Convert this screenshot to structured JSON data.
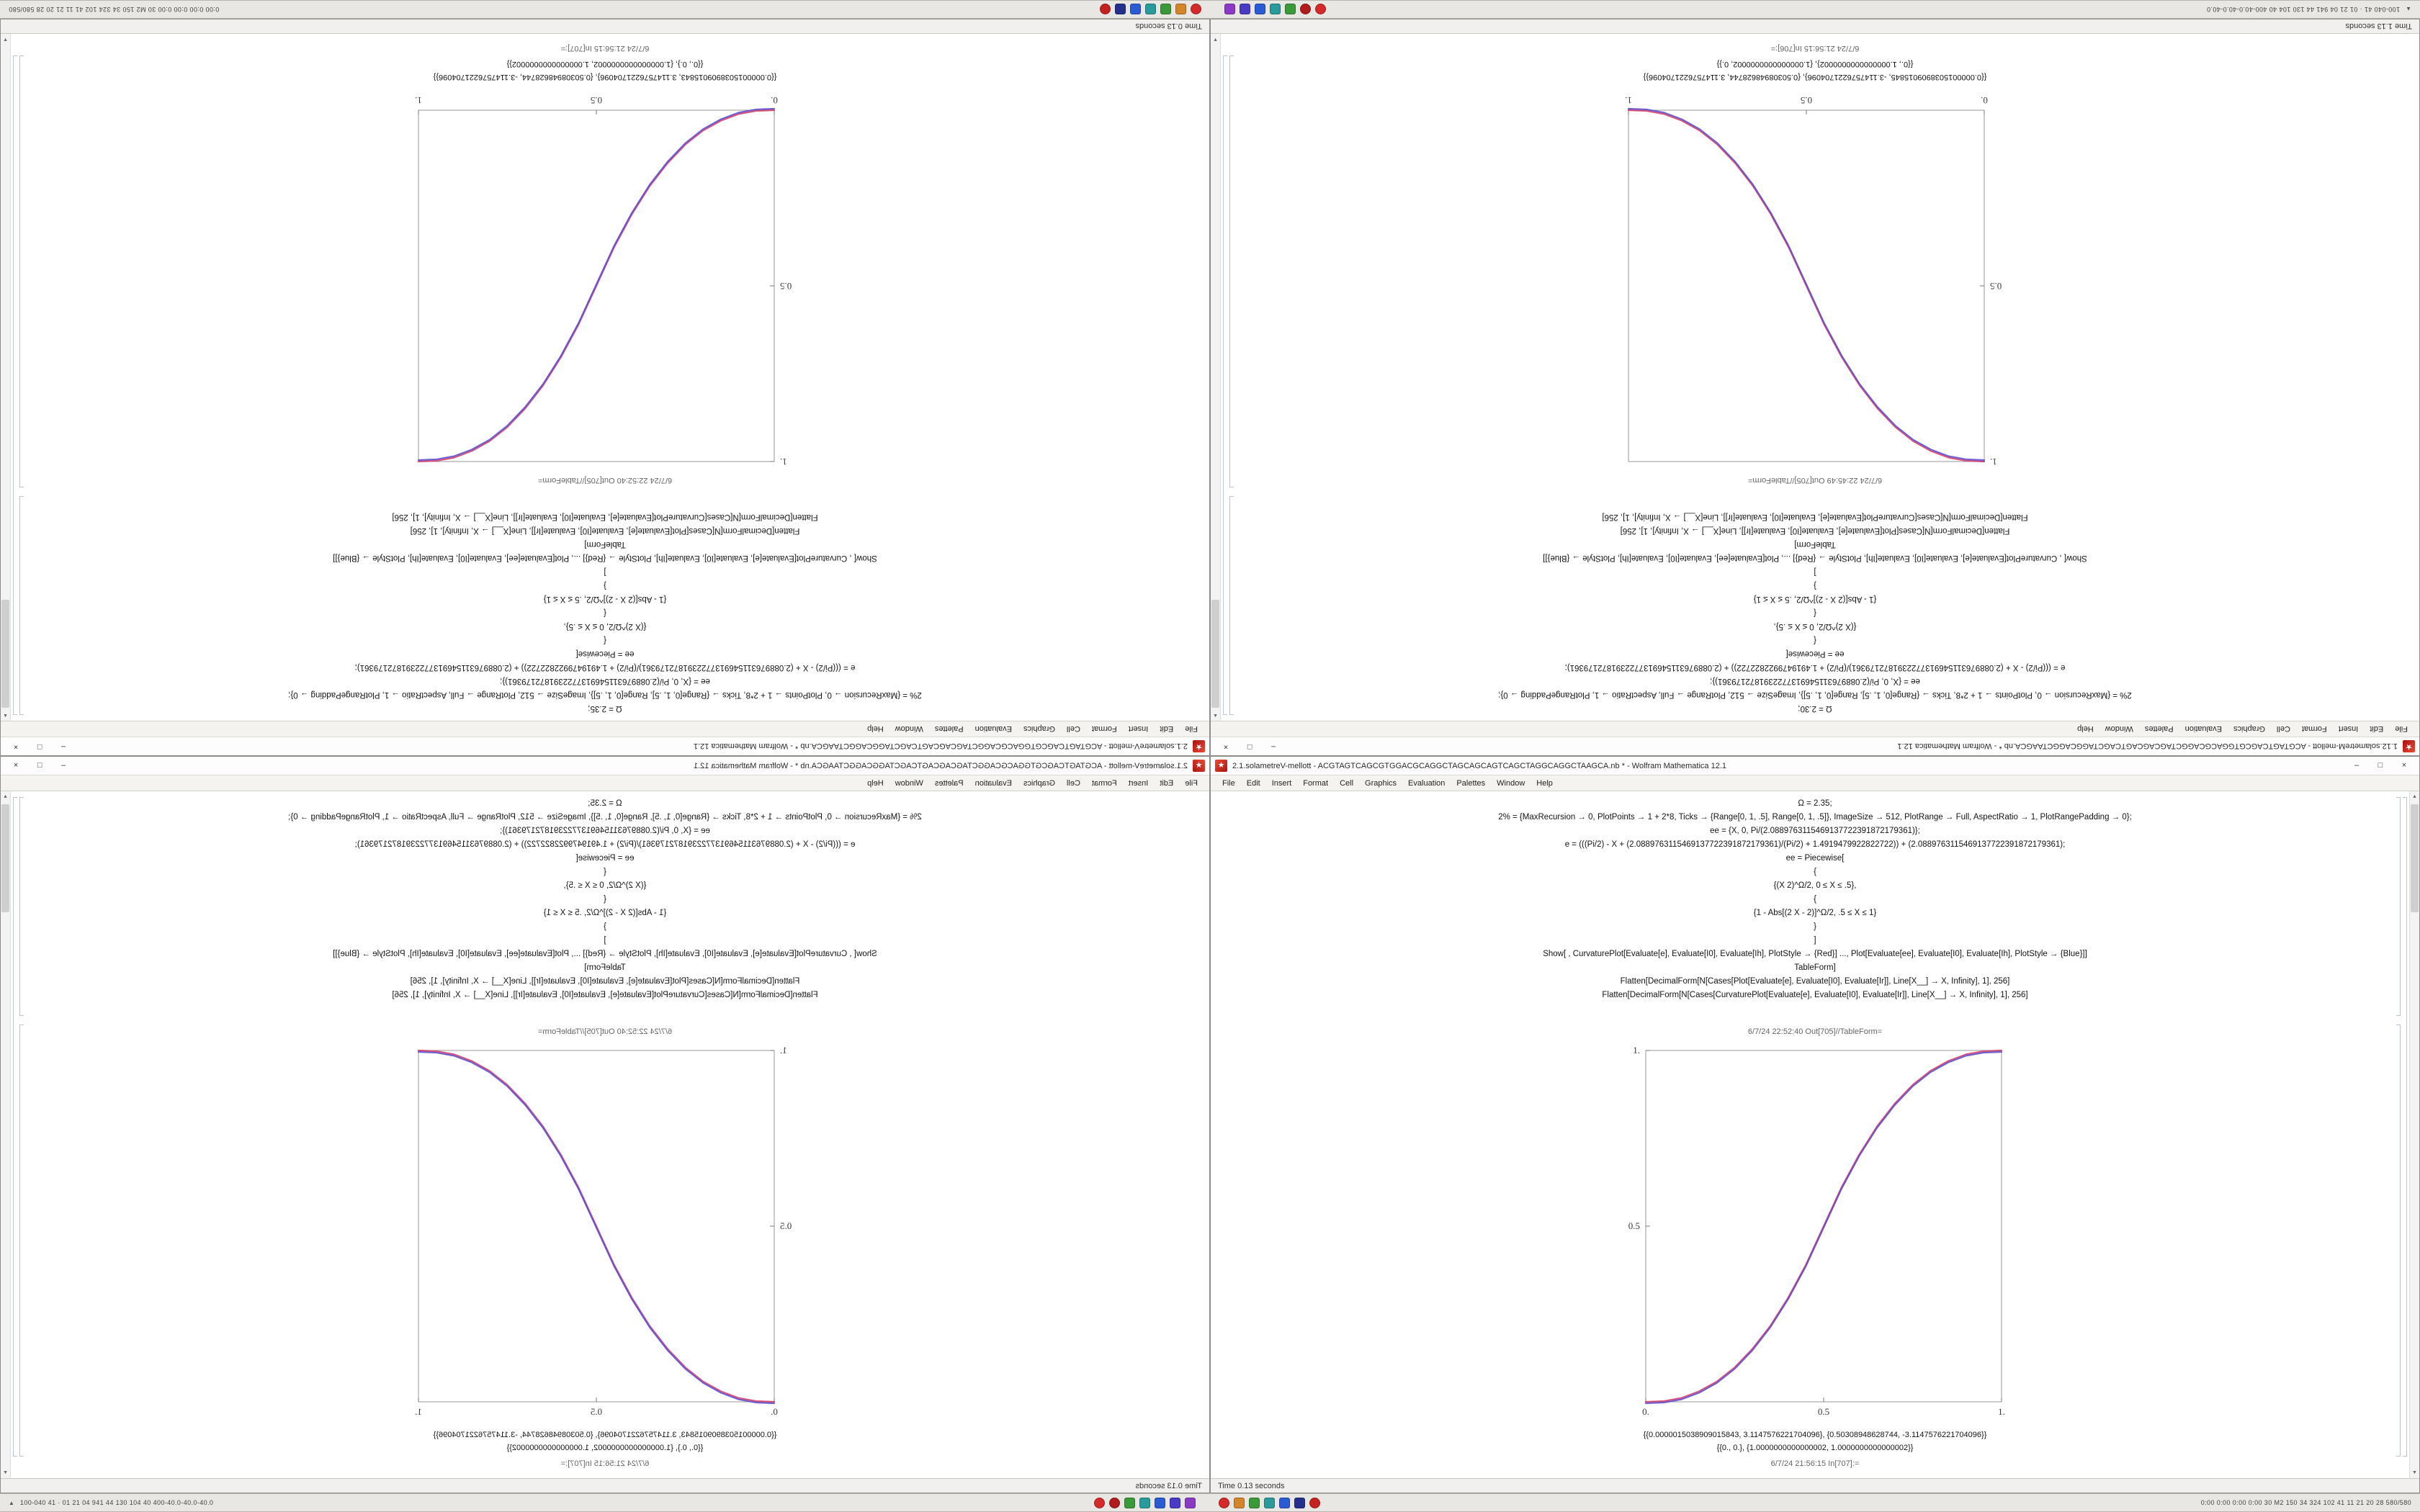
{
  "taskbar": {
    "left_text": "100-040 41 · 01 21 04 941 44 130 104 40 400-40.0-40.0-40.0",
    "right_text": "0:00 0:00 0:00 0:00 30 M2 150 34 324 102 41 11 21 20 28 580/580",
    "icon_groups": [
      [
        {
          "name": "tray-red-1",
          "color": "#d42a2a",
          "shape": "dot"
        },
        {
          "name": "tray-red-2",
          "color": "#b01c1c",
          "shape": "dot"
        },
        {
          "name": "tray-green",
          "color": "#3a9a3a",
          "shape": "square"
        },
        {
          "name": "tray-teal",
          "color": "#2a9a9a",
          "shape": "square"
        },
        {
          "name": "tray-blue",
          "color": "#2a5ad4",
          "shape": "square"
        },
        {
          "name": "tray-indigo",
          "color": "#4a3ac4",
          "shape": "square"
        },
        {
          "name": "tray-violet",
          "color": "#8a3ac4",
          "shape": "square"
        }
      ],
      [
        {
          "name": "tray-red-3",
          "color": "#d42a2a",
          "shape": "dot"
        },
        {
          "name": "tray-orange",
          "color": "#d4842a",
          "shape": "square"
        },
        {
          "name": "tray-green-2",
          "color": "#3a9a3a",
          "shape": "square"
        },
        {
          "name": "tray-teal-2",
          "color": "#2a9a9a",
          "shape": "square"
        },
        {
          "name": "tray-blue-2",
          "color": "#2a5ad4",
          "shape": "square"
        },
        {
          "name": "tray-navy",
          "color": "#24308c",
          "shape": "square"
        },
        {
          "name": "tray-red-4",
          "color": "#c42222",
          "shape": "dot"
        }
      ]
    ]
  },
  "windows": {
    "A": {
      "title": "2.1.solametreV-mellott - ACGTAGTCAGCGTGGACGCAGGCTAGCAGCAGTCAGCTAGGCAGGCTAAGCA.nb * - Wolfram Mathematica 12.1",
      "menu": [
        "File",
        "Edit",
        "Insert",
        "Format",
        "Cell",
        "Graphics",
        "Evaluation",
        "Palettes",
        "Window",
        "Help"
      ],
      "window_controls": [
        "–",
        "□",
        "×"
      ],
      "code_lines": [
        "Ω = 2.35;",
        "2% = {MaxRecursion → 0, PlotPoints → 1 + 2*8, Ticks → {Range[0, 1, .5], Range[0, 1, .5]}, ImageSize → 512, PlotRange → Full, AspectRatio → 1, PlotRangePadding → 0};",
        "ee = {X, 0, Pi/(2.0889763115469137722391872179361)};",
        "e = (((Pi/2) - X + (2.0889763115469137722391872179361)/(Pi/2) + 1.4919479922822722)) + (2.0889763115469137722391872179361);",
        "ee = Piecewise[",
        "{",
        "{(X 2)^Ω/2, 0 ≤ X ≤ .5},",
        "{",
        "{1 - Abs[(2 X - 2)]^Ω/2, .5 ≤ X ≤ 1}",
        "}",
        "]",
        "Show[ , CurvaturePlot[Evaluate[e], Evaluate[I0], Evaluate[Ih], PlotStyle → {Red}] ..., Plot[Evaluate[ee], Evaluate[I0], Evaluate[Ih], PlotStyle → {Blue}]]",
        "TableForm]",
        "Flatten[DecimalForm[N[Cases[Plot[Evaluate[e], Evaluate[I0], Evaluate[Ir]], Line[X__] → X, Infinity], 1], 256]",
        "Flatten[DecimalForm[N[Cases[CurvaturePlot[Evaluate[e], Evaluate[I0], Evaluate[Ir]], Line[X__] → X, Infinity], 1], 256]"
      ],
      "out_header": "6/7/24 22:52:40   Out[705]//TableForm=",
      "result_lines": [
        "{{0.0000015038909015843, 3.1147576221704096}, {0.50308948628744, -3.1147576221704096}}",
        "{{0., 0.}, {1.0000000000000002, 1.0000000000000002}}"
      ],
      "next_in_label": "6/7/24 21:56:15   In[707]:=",
      "status": "Time 0.13 seconds",
      "chart_index": 0
    },
    "B": {
      "title": "1.12.solametreM-mellott - ACGTAGTCAGCGTGGACGCAGGCTAGCAGCAGTCAGCTAGGCAGGCTAAGCA.nb * - Wolfram Mathematica 12.1",
      "menu": [
        "File",
        "Edit",
        "Insert",
        "Format",
        "Cell",
        "Graphics",
        "Evaluation",
        "Palettes",
        "Window",
        "Help"
      ],
      "window_controls": [
        "–",
        "□",
        "×"
      ],
      "code_lines": [
        "Ω = 2.30;",
        "2% = {MaxRecursion → 0, PlotPoints → 1 + 2*8, Ticks → {Range[0, 1, .5], Range[0, 1, .5]}, ImageSize → 512, PlotRange → Full, AspectRatio → 1, PlotRangePadding → 0};",
        "ee = {X, 0, Pi/(2.0889763115469137722391872179361)};",
        "e = (((Pi/2) - X + (2.0889763115469137722391872179361)/(Pi/2) + 1.4919479922822722)) + (2.0889763115469137722391872179361);",
        "ee = Piecewise[",
        "{",
        "{(X 2)^Ω/2, 0 ≤ X ≤ .5},",
        "{",
        "{1 - Abs[(2 X - 2)]^Ω/2, .5 ≤ X ≤ 1}",
        "}",
        "]",
        "Show[ , CurvaturePlot[Evaluate[e], Evaluate[I0], Evaluate[Ih], PlotStyle → {Red}] ..., Plot[Evaluate[ee], Evaluate[I0], Evaluate[Ih], PlotStyle → {Blue}]]",
        "TableForm]",
        "Flatten[DecimalForm[N[Cases[Plot[Evaluate[e], Evaluate[I0], Evaluate[Ir]], Line[X__] → X, Infinity], 1], 256]",
        "Flatten[DecimalForm[N[Cases[CurvaturePlot[Evaluate[e], Evaluate[I0], Evaluate[Ir]], Line[X__] → X, Infinity], 1], 256]"
      ],
      "out_header": "6/7/24 22:45:49   Out[705]//TableForm=",
      "result_lines": [
        "{{0.0000015038909015845, -3.1147576221704096}, {0.50308948628744, 3.1147576221704096}}",
        "{{0., 1.0000000000000002}, {1.0000000000000002, 0.}}"
      ],
      "next_in_label": "6/7/24 21:56:15   In[706]:=",
      "status": "Time 1.13 seconds",
      "chart_index": 1
    }
  },
  "chart_data": [
    {
      "type": "line",
      "title": "",
      "xlabel": "",
      "ylabel": "",
      "xlim": [
        0,
        1
      ],
      "ylim": [
        0,
        1
      ],
      "grid": false,
      "legend": "none",
      "xtick_positions": [
        0,
        0.5,
        1
      ],
      "xtick_labels": [
        "0.",
        "0.5",
        "1."
      ],
      "ytick_positions": [
        0.5,
        1
      ],
      "ytick_labels": [
        "0.5",
        "1."
      ],
      "x": [
        0,
        0.05,
        0.1,
        0.15,
        0.2,
        0.25,
        0.3,
        0.35,
        0.4,
        0.45,
        0.5,
        0.55,
        0.6,
        0.65,
        0.7,
        0.75,
        0.8,
        0.85,
        0.9,
        0.95,
        1
      ],
      "series": [
        {
          "name": "CurvaturePlot (Red)",
          "color": "#d23a6a",
          "values": [
            0,
            0.002,
            0.011,
            0.03,
            0.058,
            0.098,
            0.151,
            0.216,
            0.296,
            0.39,
            0.5,
            0.61,
            0.704,
            0.784,
            0.849,
            0.902,
            0.942,
            0.97,
            0.989,
            0.998,
            1.0
          ]
        },
        {
          "name": "Plot (Blue)",
          "color": "#5a48c8",
          "values": [
            0,
            0.002,
            0.011,
            0.03,
            0.058,
            0.098,
            0.151,
            0.216,
            0.296,
            0.39,
            0.5,
            0.61,
            0.704,
            0.784,
            0.849,
            0.902,
            0.942,
            0.97,
            0.989,
            0.998,
            1.0
          ]
        }
      ]
    },
    {
      "type": "line",
      "title": "",
      "xlabel": "",
      "ylabel": "",
      "xlim": [
        0,
        1
      ],
      "ylim": [
        0,
        1
      ],
      "grid": false,
      "legend": "none",
      "xtick_positions": [
        0,
        0.5,
        1
      ],
      "xtick_labels": [
        "0.",
        "0.5",
        "1."
      ],
      "ytick_positions": [
        0.5,
        1
      ],
      "ytick_labels": [
        "0.5",
        "1."
      ],
      "x": [
        0,
        0.05,
        0.1,
        0.15,
        0.2,
        0.25,
        0.3,
        0.35,
        0.4,
        0.45,
        0.5,
        0.55,
        0.6,
        0.65,
        0.7,
        0.75,
        0.8,
        0.85,
        0.9,
        0.95,
        1
      ],
      "series": [
        {
          "name": "CurvaturePlot (Red)",
          "color": "#d23a6a",
          "values": [
            1,
            0.998,
            0.989,
            0.97,
            0.942,
            0.902,
            0.849,
            0.784,
            0.704,
            0.61,
            0.5,
            0.39,
            0.296,
            0.216,
            0.151,
            0.098,
            0.058,
            0.03,
            0.011,
            0.002,
            0
          ]
        },
        {
          "name": "Plot (Blue)",
          "color": "#5a48c8",
          "values": [
            1,
            0.998,
            0.989,
            0.97,
            0.942,
            0.902,
            0.849,
            0.784,
            0.704,
            0.61,
            0.5,
            0.39,
            0.296,
            0.216,
            0.151,
            0.098,
            0.058,
            0.03,
            0.011,
            0.002,
            0
          ]
        }
      ]
    }
  ]
}
